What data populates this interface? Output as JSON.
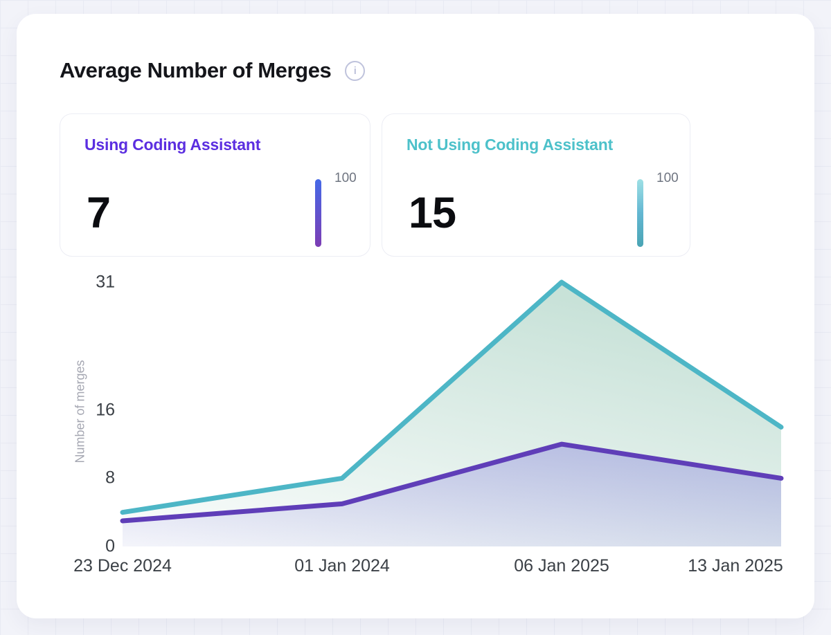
{
  "panel": {
    "title": "Average Number of Merges",
    "info_glyph": "i"
  },
  "stat_cards": [
    {
      "label": "Using Coding Assistant",
      "value": "7",
      "scale_max": "100",
      "accent": "#5b2ee0",
      "bar_gradient": [
        "#4569e7",
        "#7c3db4"
      ]
    },
    {
      "label": "Not Using Coding Assistant",
      "value": "15",
      "scale_max": "100",
      "accent": "#4dc1ca",
      "bar_gradient": [
        "#9ee0e5",
        "#63b7d2",
        "#4aa4b4"
      ]
    }
  ],
  "chart_data": {
    "type": "area",
    "title": "Average Number of Merges",
    "categories": [
      "23 Dec 2024",
      "01 Jan 2024",
      "06 Jan 2025",
      "13 Jan 2025"
    ],
    "series": [
      {
        "name": "Using Coding Assistant",
        "color": "#5f3eb8",
        "fill_from": "rgba(104,90,216,0.30)",
        "fill_to": "rgba(104,90,216,0.05)",
        "values": [
          3,
          5,
          12,
          8
        ]
      },
      {
        "name": "Not Using Coding Assistant",
        "color": "#4db6c6",
        "fill_from": "rgba(85,165,135,0.32)",
        "fill_to": "rgba(85,165,135,0.02)",
        "values": [
          4,
          8,
          31,
          14
        ]
      }
    ],
    "xlabel": "",
    "ylabel": "Number of merges",
    "yticks": [
      0,
      8,
      16,
      31
    ],
    "ylim": [
      0,
      31
    ],
    "grid": false,
    "legend_position": "top-cards"
  }
}
